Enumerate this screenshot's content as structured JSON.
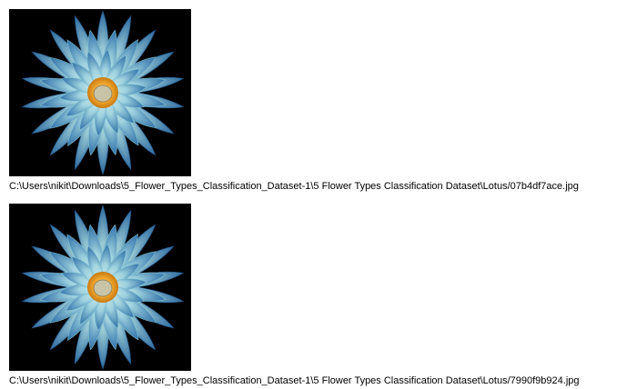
{
  "results": [
    {
      "image": "lotus-flower-thumbnail",
      "path": "C:\\Users\\nikit\\Downloads\\5_Flower_Types_Classification_Dataset-1\\5 Flower Types Classification Dataset\\Lotus/07b4df7ace.jpg"
    },
    {
      "image": "lotus-flower-thumbnail",
      "path": "C:\\Users\\nikit\\Downloads\\5_Flower_Types_Classification_Dataset-1\\5 Flower Types Classification Dataset\\Lotus/7990f9b924.jpg"
    }
  ],
  "colors": {
    "background": "#000000",
    "petal_outer": "#2f6fa8",
    "petal_inner": "#dff2ee",
    "center_ring": "#f0a62c",
    "center_core": "#c8c4a8"
  }
}
